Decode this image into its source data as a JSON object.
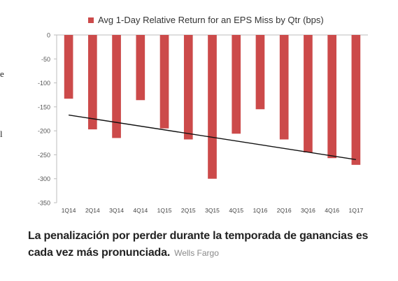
{
  "left_fragments": [
    "e",
    "l"
  ],
  "chart_data": {
    "type": "bar",
    "title": "Avg 1-Day Relative Return for an EPS Miss by Qtr (bps)",
    "xlabel": "",
    "ylabel": "",
    "categories": [
      "1Q14",
      "2Q14",
      "3Q14",
      "4Q14",
      "1Q15",
      "2Q15",
      "3Q15",
      "4Q15",
      "1Q16",
      "2Q16",
      "3Q16",
      "4Q16",
      "1Q17"
    ],
    "series": [
      {
        "name": "Avg 1-Day Relative Return for an EPS Miss by Qtr (bps)",
        "values": [
          -133,
          -197,
          -215,
          -136,
          -195,
          -218,
          -300,
          -206,
          -155,
          -218,
          -245,
          -257,
          -271
        ]
      }
    ],
    "trendline": {
      "start": -167,
      "end": -260
    },
    "ylim": [
      -350,
      0
    ],
    "yticks": [
      0,
      -50,
      -100,
      -150,
      -200,
      -250,
      -300,
      -350
    ],
    "grid": false,
    "legend_position": "top",
    "colors": {
      "bar": "#cc4a4a",
      "trendline": "#111111",
      "axis": "#bdbdbd"
    }
  },
  "caption": {
    "text": "La penalización por perder durante la temporada de ganancias es cada vez más pronunciada.",
    "source": "Wells Fargo"
  }
}
